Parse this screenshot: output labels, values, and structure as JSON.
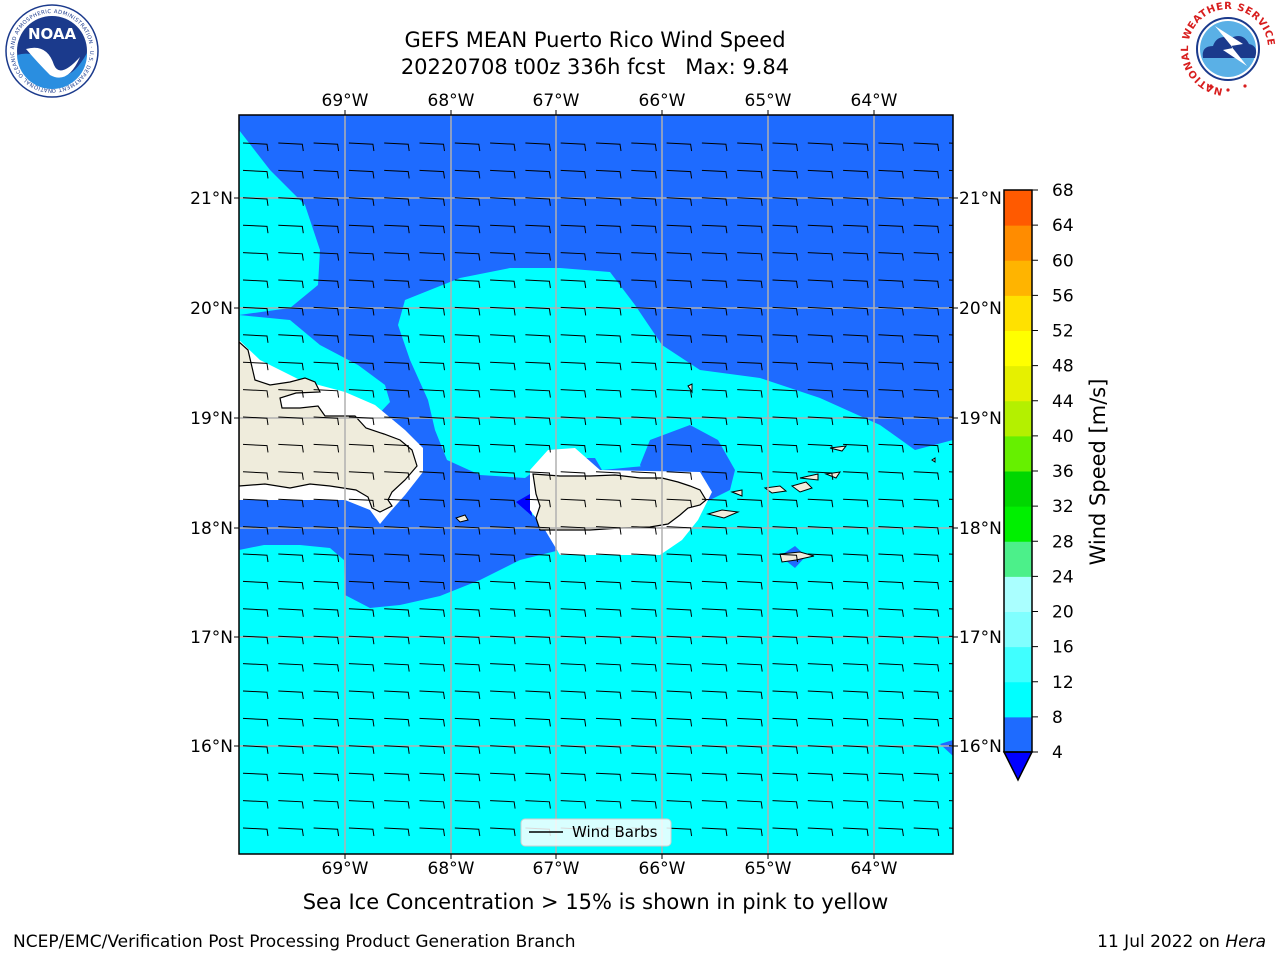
{
  "header": {
    "title_line1": "GEFS MEAN Puerto Rico Wind Speed",
    "title_line2": "20220708 t00z 336h fcst   Max: 9.84"
  },
  "logos": {
    "noaa_center_text": "NOAA",
    "noaa_ring_text": "NATIONAL OCEANIC AND ATMOSPHERIC ADMINISTRATION · U.S. DEPARTMENT OF COMMERCE",
    "nws_ring_text": "NATIONAL WEATHER SERVICE"
  },
  "map": {
    "lon_labels": [
      "69°W",
      "68°W",
      "67°W",
      "66°W",
      "65°W",
      "64°W"
    ],
    "lat_labels": [
      "21°N",
      "20°N",
      "19°N",
      "18°N",
      "17°N",
      "16°N"
    ],
    "legend_label": "Wind Barbs",
    "colors": {
      "dark_blue": "#0000ff",
      "blue": "#1e6bff",
      "cyan": "#00ffff",
      "light_cyan": "#40ffff",
      "land": "#efecdc",
      "white_mask": "#ffffff",
      "grid": "#b0b0b0"
    }
  },
  "colorbar": {
    "label": "Wind Speed [m/s]",
    "ticks": [
      "4",
      "8",
      "12",
      "16",
      "20",
      "24",
      "28",
      "32",
      "36",
      "40",
      "44",
      "48",
      "52",
      "56",
      "60",
      "64",
      "68"
    ],
    "colors": [
      "#1e6bff",
      "#00ffff",
      "#40ffff",
      "#80ffff",
      "#aaffff",
      "#4cf08a",
      "#00f000",
      "#00d700",
      "#66f000",
      "#b4f000",
      "#e6f000",
      "#ffff00",
      "#ffe100",
      "#ffb400",
      "#ff8c00",
      "#ff5a00",
      "#ff2800",
      "#ff0000"
    ],
    "extend_color": "#0000ff"
  },
  "footer": {
    "note": "Sea Ice Concentration > 15% is shown in pink to yellow",
    "left": "NCEP/EMC/Verification Post Processing Product Generation Branch",
    "right_date": "11 Jul 2022 on ",
    "right_machine": "Hera"
  }
}
